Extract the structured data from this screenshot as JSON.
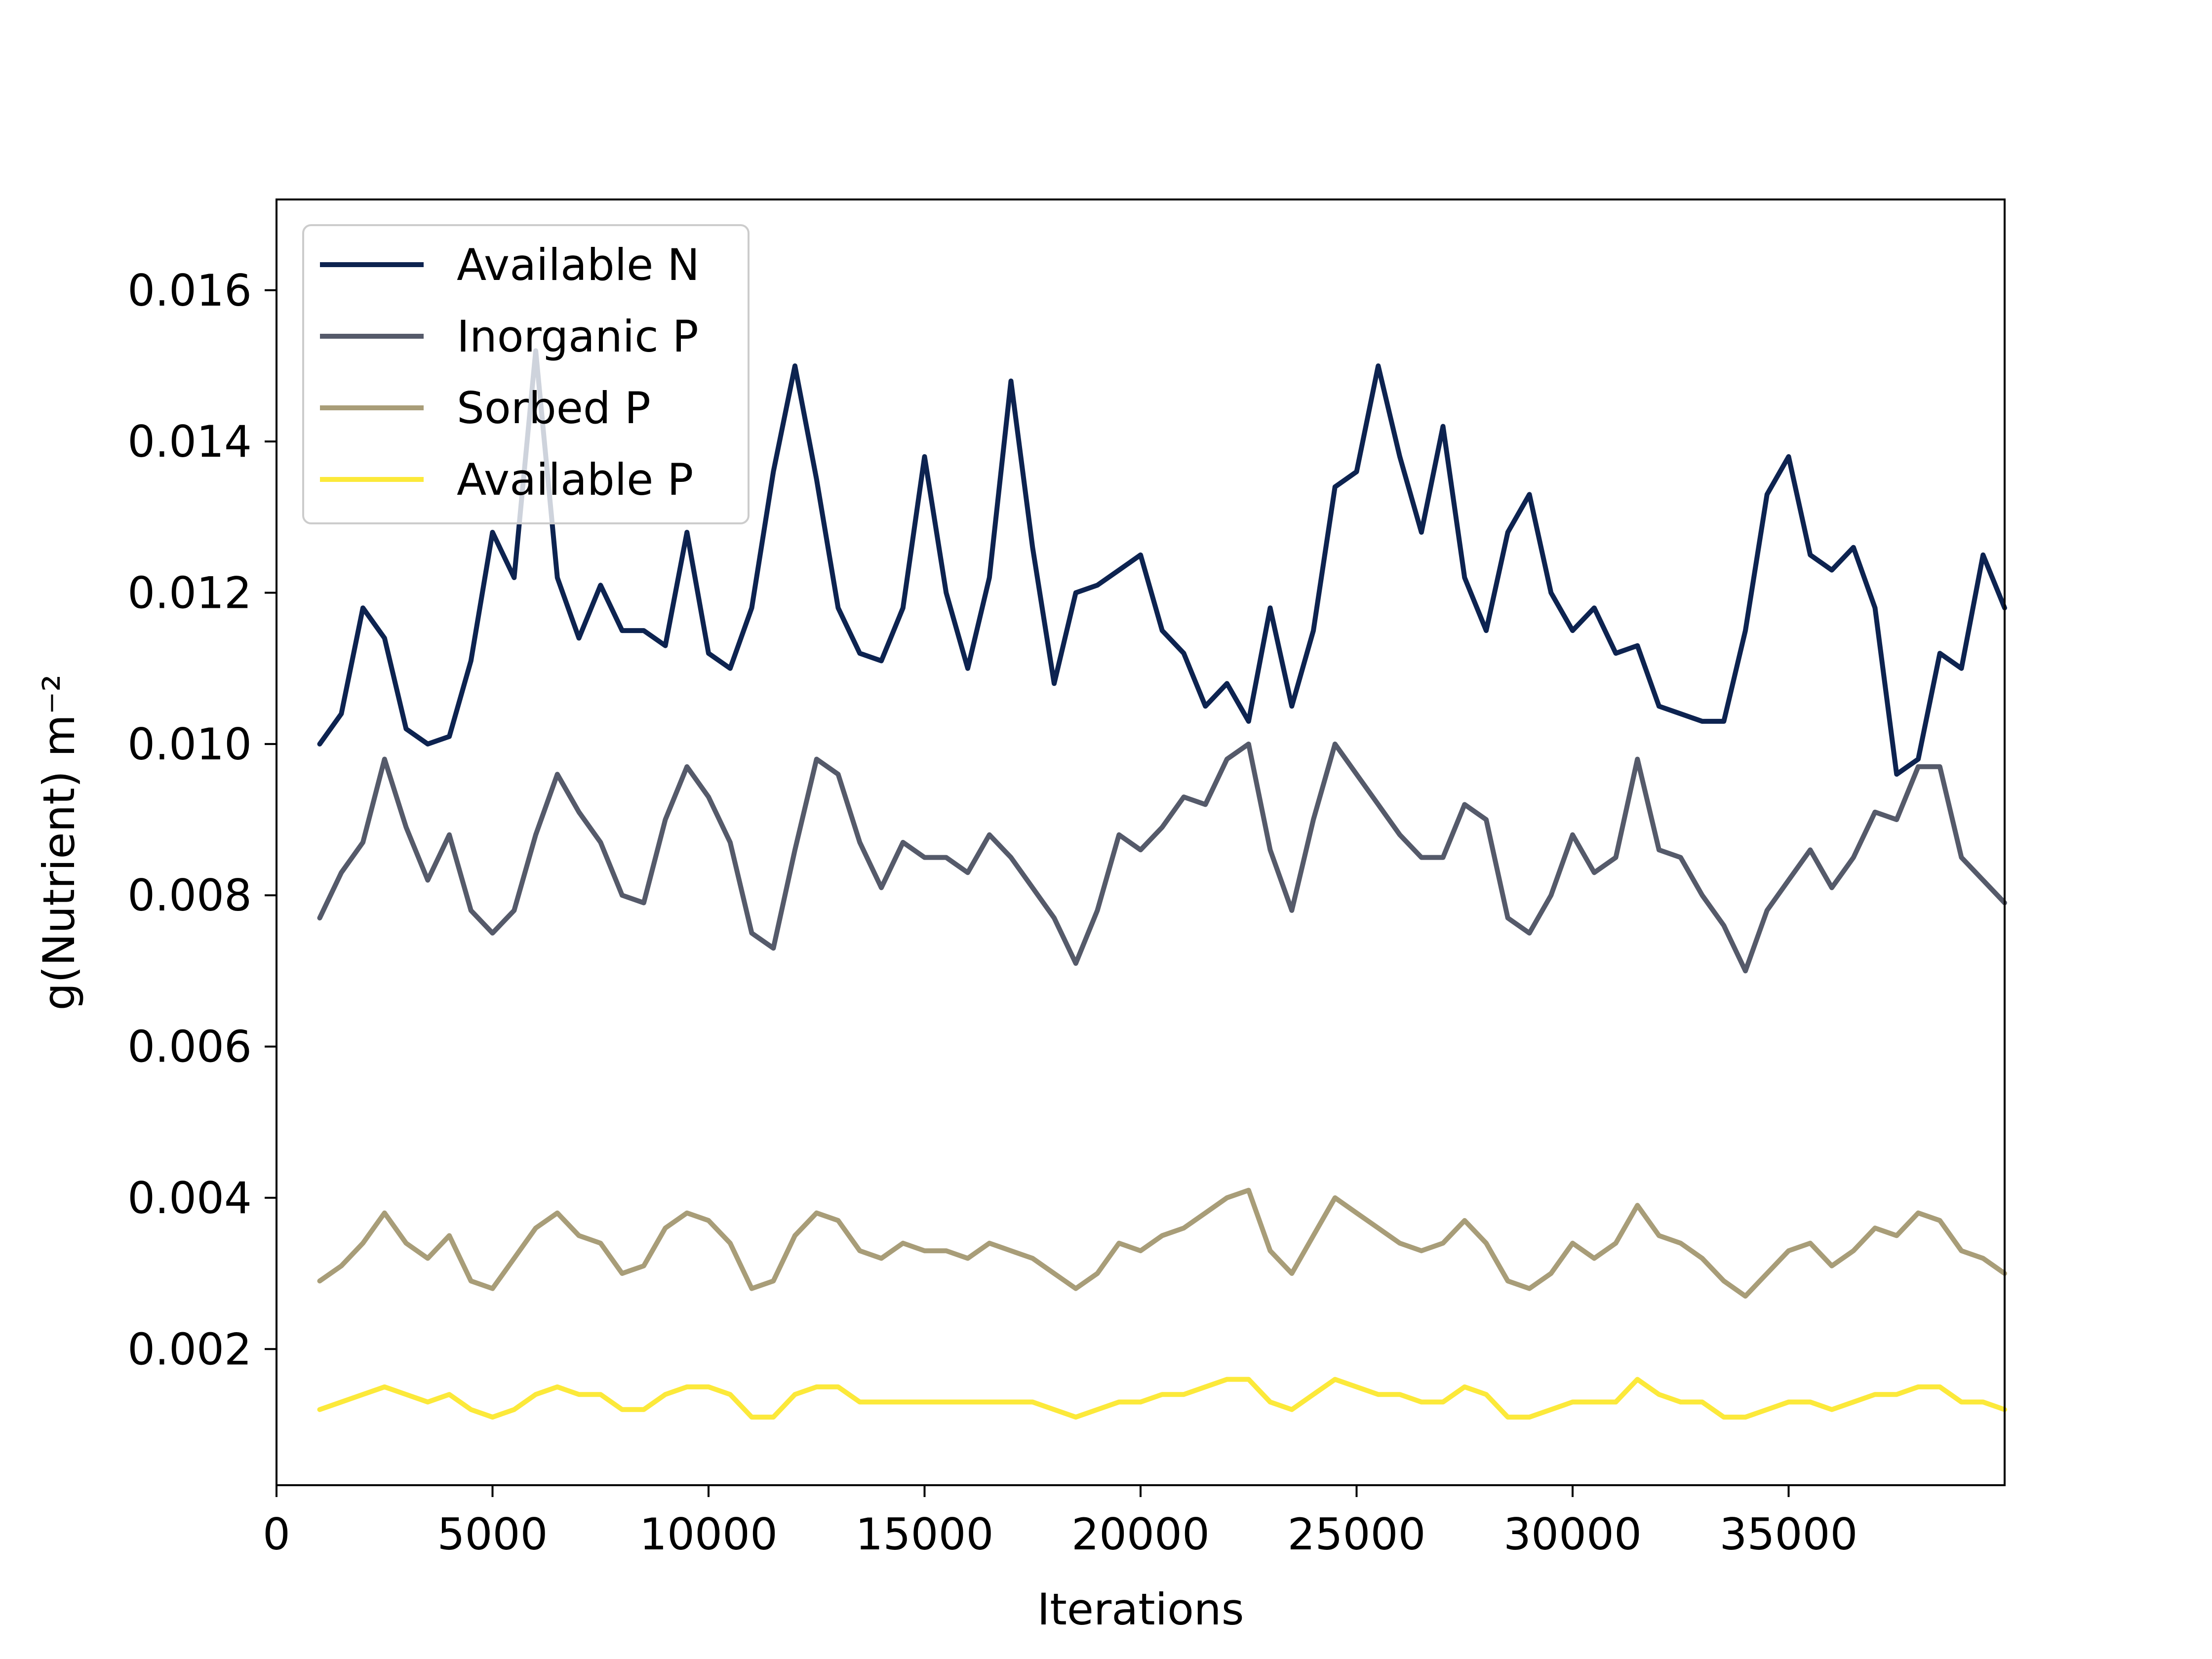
{
  "chart_data": {
    "type": "line",
    "title": "",
    "xlabel": "Iterations",
    "ylabel": "g(Nutrient) m⁻²",
    "xlim": [
      0,
      40000
    ],
    "ylim": [
      0.0002,
      0.0172
    ],
    "xticks": [
      0,
      5000,
      10000,
      15000,
      20000,
      25000,
      30000,
      35000
    ],
    "xtick_labels": [
      "0",
      "5000",
      "10000",
      "15000",
      "20000",
      "25000",
      "30000",
      "35000"
    ],
    "yticks": [
      0.002,
      0.004,
      0.006,
      0.008,
      0.01,
      0.012,
      0.014,
      0.016
    ],
    "ytick_labels": [
      "0.002",
      "0.004",
      "0.006",
      "0.008",
      "0.010",
      "0.012",
      "0.014",
      "0.016"
    ],
    "grid": false,
    "legend_position": "top-left",
    "series": [
      {
        "name": "Available N",
        "color": "#0d2350",
        "x": [
          1000,
          1500,
          2000,
          2500,
          3000,
          3500,
          4000,
          4500,
          5000,
          5500,
          6000,
          6500,
          7000,
          7500,
          8000,
          8500,
          9000,
          9500,
          10000,
          10500,
          11000,
          11500,
          12000,
          12500,
          13000,
          13500,
          14000,
          14500,
          15000,
          15500,
          16000,
          16500,
          17000,
          17500,
          18000,
          18500,
          19000,
          19500,
          20000,
          20500,
          21000,
          21500,
          22000,
          22500,
          23000,
          23500,
          24000,
          24500,
          25000,
          25500,
          26000,
          26500,
          27000,
          27500,
          28000,
          28500,
          29000,
          29500,
          30000,
          30500,
          31000,
          31500,
          32000,
          32500,
          33000,
          33500,
          34000,
          34500,
          35000,
          35500,
          36000,
          36500,
          37000,
          37500,
          38000,
          38500,
          39000,
          39500,
          40000
        ],
        "values": [
          0.01,
          0.0104,
          0.0118,
          0.0114,
          0.0102,
          0.01,
          0.0101,
          0.0111,
          0.0128,
          0.0122,
          0.0152,
          0.0122,
          0.0114,
          0.0121,
          0.0115,
          0.0115,
          0.0113,
          0.0128,
          0.0112,
          0.011,
          0.0118,
          0.0136,
          0.015,
          0.0135,
          0.0118,
          0.0112,
          0.0111,
          0.0118,
          0.0138,
          0.012,
          0.011,
          0.0122,
          0.0148,
          0.0126,
          0.0108,
          0.012,
          0.0121,
          0.0123,
          0.0125,
          0.0115,
          0.0112,
          0.0105,
          0.0108,
          0.0103,
          0.0118,
          0.0105,
          0.0115,
          0.0134,
          0.0136,
          0.015,
          0.0138,
          0.0128,
          0.0142,
          0.0122,
          0.0115,
          0.0128,
          0.0133,
          0.012,
          0.0115,
          0.0118,
          0.0112,
          0.0113,
          0.0105,
          0.0104,
          0.0103,
          0.0103,
          0.0115,
          0.0133,
          0.0138,
          0.0125,
          0.0123,
          0.0126,
          0.0118,
          0.0096,
          0.0098,
          0.0112,
          0.011,
          0.0125,
          0.0118
        ]
      },
      {
        "name": "Inorganic P",
        "color": "#555a6a",
        "x": [
          1000,
          1500,
          2000,
          2500,
          3000,
          3500,
          4000,
          4500,
          5000,
          5500,
          6000,
          6500,
          7000,
          7500,
          8000,
          8500,
          9000,
          9500,
          10000,
          10500,
          11000,
          11500,
          12000,
          12500,
          13000,
          13500,
          14000,
          14500,
          15000,
          15500,
          16000,
          16500,
          17000,
          17500,
          18000,
          18500,
          19000,
          19500,
          20000,
          20500,
          21000,
          21500,
          22000,
          22500,
          23000,
          23500,
          24000,
          24500,
          25000,
          25500,
          26000,
          26500,
          27000,
          27500,
          28000,
          28500,
          29000,
          29500,
          30000,
          30500,
          31000,
          31500,
          32000,
          32500,
          33000,
          33500,
          34000,
          34500,
          35000,
          35500,
          36000,
          36500,
          37000,
          37500,
          38000,
          38500,
          39000,
          39500,
          40000
        ],
        "values": [
          0.0077,
          0.0083,
          0.0087,
          0.0098,
          0.0089,
          0.0082,
          0.0088,
          0.0078,
          0.0075,
          0.0078,
          0.0088,
          0.0096,
          0.0091,
          0.0087,
          0.008,
          0.0079,
          0.009,
          0.0097,
          0.0093,
          0.0087,
          0.0075,
          0.0073,
          0.0086,
          0.0098,
          0.0096,
          0.0087,
          0.0081,
          0.0087,
          0.0085,
          0.0085,
          0.0083,
          0.0088,
          0.0085,
          0.0081,
          0.0077,
          0.0071,
          0.0078,
          0.0088,
          0.0086,
          0.0089,
          0.0093,
          0.0092,
          0.0098,
          0.01,
          0.0086,
          0.0078,
          0.009,
          0.01,
          0.0096,
          0.0092,
          0.0088,
          0.0085,
          0.0085,
          0.0092,
          0.009,
          0.0077,
          0.0075,
          0.008,
          0.0088,
          0.0083,
          0.0085,
          0.0098,
          0.0086,
          0.0085,
          0.008,
          0.0076,
          0.007,
          0.0078,
          0.0082,
          0.0086,
          0.0081,
          0.0085,
          0.0091,
          0.009,
          0.0097,
          0.0097,
          0.0085,
          0.0082,
          0.0079
        ]
      },
      {
        "name": "Sorbed P",
        "color": "#a89d78",
        "x": [
          1000,
          1500,
          2000,
          2500,
          3000,
          3500,
          4000,
          4500,
          5000,
          5500,
          6000,
          6500,
          7000,
          7500,
          8000,
          8500,
          9000,
          9500,
          10000,
          10500,
          11000,
          11500,
          12000,
          12500,
          13000,
          13500,
          14000,
          14500,
          15000,
          15500,
          16000,
          16500,
          17000,
          17500,
          18000,
          18500,
          19000,
          19500,
          20000,
          20500,
          21000,
          21500,
          22000,
          22500,
          23000,
          23500,
          24000,
          24500,
          25000,
          25500,
          26000,
          26500,
          27000,
          27500,
          28000,
          28500,
          29000,
          29500,
          30000,
          30500,
          31000,
          31500,
          32000,
          32500,
          33000,
          33500,
          34000,
          34500,
          35000,
          35500,
          36000,
          36500,
          37000,
          37500,
          38000,
          38500,
          39000,
          39500,
          40000
        ],
        "values": [
          0.0029,
          0.0031,
          0.0034,
          0.0038,
          0.0034,
          0.0032,
          0.0035,
          0.0029,
          0.0028,
          0.0032,
          0.0036,
          0.0038,
          0.0035,
          0.0034,
          0.003,
          0.0031,
          0.0036,
          0.0038,
          0.0037,
          0.0034,
          0.0028,
          0.0029,
          0.0035,
          0.0038,
          0.0037,
          0.0033,
          0.0032,
          0.0034,
          0.0033,
          0.0033,
          0.0032,
          0.0034,
          0.0033,
          0.0032,
          0.003,
          0.0028,
          0.003,
          0.0034,
          0.0033,
          0.0035,
          0.0036,
          0.0038,
          0.004,
          0.0041,
          0.0033,
          0.003,
          0.0035,
          0.004,
          0.0038,
          0.0036,
          0.0034,
          0.0033,
          0.0034,
          0.0037,
          0.0034,
          0.0029,
          0.0028,
          0.003,
          0.0034,
          0.0032,
          0.0034,
          0.0039,
          0.0035,
          0.0034,
          0.0032,
          0.0029,
          0.0027,
          0.003,
          0.0033,
          0.0034,
          0.0031,
          0.0033,
          0.0036,
          0.0035,
          0.0038,
          0.0037,
          0.0033,
          0.0032,
          0.003
        ]
      },
      {
        "name": "Available P",
        "color": "#fce93a",
        "x": [
          1000,
          1500,
          2000,
          2500,
          3000,
          3500,
          4000,
          4500,
          5000,
          5500,
          6000,
          6500,
          7000,
          7500,
          8000,
          8500,
          9000,
          9500,
          10000,
          10500,
          11000,
          11500,
          12000,
          12500,
          13000,
          13500,
          14000,
          14500,
          15000,
          15500,
          16000,
          16500,
          17000,
          17500,
          18000,
          18500,
          19000,
          19500,
          20000,
          20500,
          21000,
          21500,
          22000,
          22500,
          23000,
          23500,
          24000,
          24500,
          25000,
          25500,
          26000,
          26500,
          27000,
          27500,
          28000,
          28500,
          29000,
          29500,
          30000,
          30500,
          31000,
          31500,
          32000,
          32500,
          33000,
          33500,
          34000,
          34500,
          35000,
          35500,
          36000,
          36500,
          37000,
          37500,
          38000,
          38500,
          39000,
          39500,
          40000
        ],
        "values": [
          0.0012,
          0.0013,
          0.0014,
          0.0015,
          0.0014,
          0.0013,
          0.0014,
          0.0012,
          0.0011,
          0.0012,
          0.0014,
          0.0015,
          0.0014,
          0.0014,
          0.0012,
          0.0012,
          0.0014,
          0.0015,
          0.0015,
          0.0014,
          0.0011,
          0.0011,
          0.0014,
          0.0015,
          0.0015,
          0.0013,
          0.0013,
          0.0013,
          0.0013,
          0.0013,
          0.0013,
          0.0013,
          0.0013,
          0.0013,
          0.0012,
          0.0011,
          0.0012,
          0.0013,
          0.0013,
          0.0014,
          0.0014,
          0.0015,
          0.0016,
          0.0016,
          0.0013,
          0.0012,
          0.0014,
          0.0016,
          0.0015,
          0.0014,
          0.0014,
          0.0013,
          0.0013,
          0.0015,
          0.0014,
          0.0011,
          0.0011,
          0.0012,
          0.0013,
          0.0013,
          0.0013,
          0.0016,
          0.0014,
          0.0013,
          0.0013,
          0.0011,
          0.0011,
          0.0012,
          0.0013,
          0.0013,
          0.0012,
          0.0013,
          0.0014,
          0.0014,
          0.0015,
          0.0015,
          0.0013,
          0.0013,
          0.0012
        ]
      }
    ]
  }
}
